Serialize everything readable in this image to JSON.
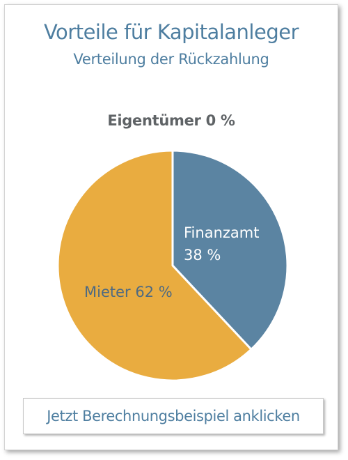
{
  "header": {
    "title": "Vorteile für Kapitalanleger",
    "subtitle": "Verteilung der Rückzahlung"
  },
  "owner_label": "Eigentümer 0 %",
  "colors": {
    "accent_text": "#4e7ea0",
    "finanzamt": "#5b84a2",
    "mieter": "#e9ac40",
    "owner_text": "#5f6366"
  },
  "chart_data": {
    "type": "pie",
    "title": "Verteilung der Rückzahlung",
    "slices": [
      {
        "name": "Finanzamt",
        "value": 38,
        "label_name": "Finanzamt",
        "label_value": "38 %",
        "color": "#5b84a2",
        "text_color": "#ffffff"
      },
      {
        "name": "Mieter",
        "value": 62,
        "label_name": "Mieter",
        "label_value": "62 %",
        "color": "#e9ac40",
        "text_color": "#4e6a82"
      },
      {
        "name": "Eigentümer",
        "value": 0,
        "label_name": "Eigentümer",
        "label_value": "0 %"
      }
    ],
    "start_angle_deg": 0,
    "direction": "clockwise",
    "legend": "none"
  },
  "cta": {
    "label": "Jetzt Berechnungsbeispiel anklicken"
  }
}
